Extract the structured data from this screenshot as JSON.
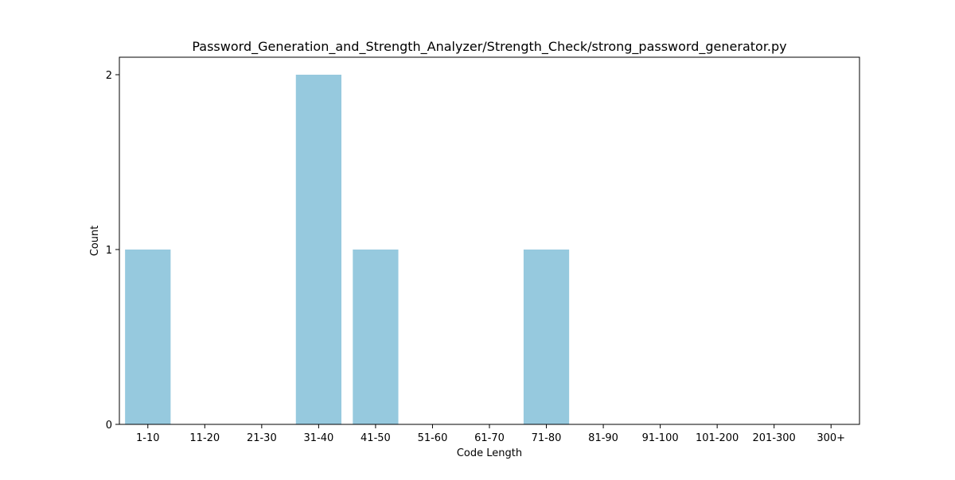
{
  "chart_data": {
    "type": "bar",
    "title": "Password_Generation_and_Strength_Analyzer/Strength_Check/strong_password_generator.py",
    "xlabel": "Code Length",
    "ylabel": "Count",
    "categories": [
      "1-10",
      "11-20",
      "21-30",
      "31-40",
      "41-50",
      "51-60",
      "61-70",
      "71-80",
      "81-90",
      "91-100",
      "101-200",
      "201-300",
      "300+"
    ],
    "values": [
      1,
      0,
      0,
      2,
      1,
      0,
      0,
      1,
      0,
      0,
      0,
      0,
      0
    ],
    "yticks": [
      0,
      1,
      2
    ],
    "ylim": [
      0,
      2.1
    ],
    "grid": false,
    "bar_color": "#96c9de"
  }
}
